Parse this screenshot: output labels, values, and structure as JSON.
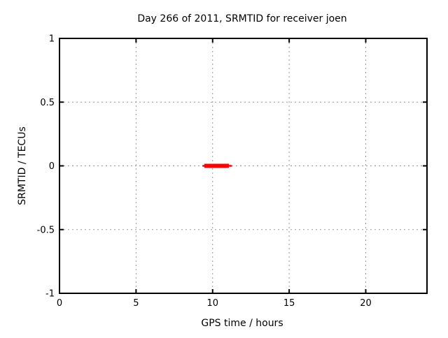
{
  "chart_data": {
    "type": "line",
    "title": "Day 266 of 2011, SRMTID for receiver joen",
    "xlabel": "GPS time / hours",
    "ylabel": "SRMTID / TECUs",
    "xlim": [
      0,
      24
    ],
    "ylim": [
      -1,
      1
    ],
    "xticks": [
      0,
      5,
      10,
      15,
      20
    ],
    "yticks": [
      -1,
      -0.5,
      0,
      0.5,
      1
    ],
    "grid": true,
    "grid_style": "dashed",
    "legend": "none",
    "series": [
      {
        "name": "SRMTID",
        "color": "#ff0000",
        "description": "horizontal segment at SRMTID = 0 TECUs",
        "segments": [
          {
            "x1": 9.34,
            "x2": 11.25,
            "y": 0,
            "thickness_px": 2.5
          },
          {
            "x1": 9.46,
            "x2": 11.06,
            "y": 0,
            "thickness_px": 6
          }
        ]
      }
    ],
    "colors": {
      "background": "#ffffff",
      "border": "#000000",
      "grid": "#999999",
      "text": "#000000",
      "series": "#ff0000"
    }
  }
}
